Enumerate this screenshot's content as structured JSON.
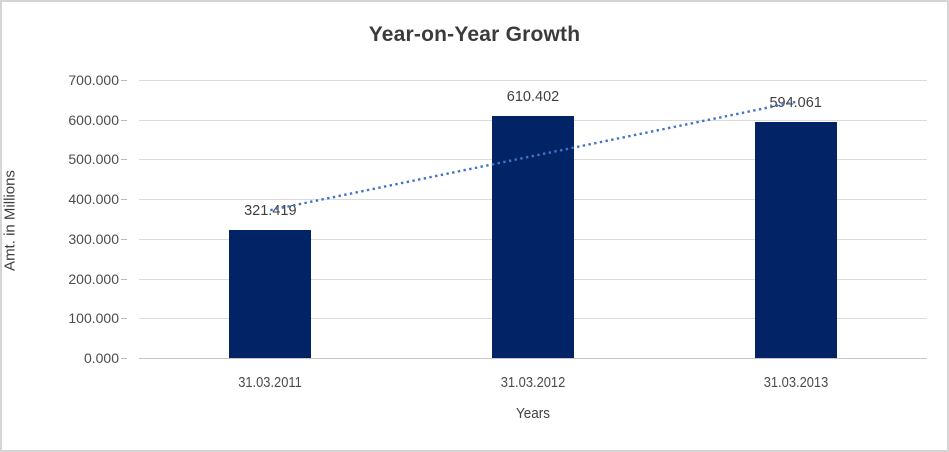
{
  "chart_data": {
    "type": "bar",
    "title": "Year-on-Year Growth",
    "categories": [
      "31.03.2011",
      "31.03.2012",
      "31.03.2013"
    ],
    "values": [
      321.419,
      610.402,
      594.061
    ],
    "data_labels": [
      "321.419",
      "610.402",
      "594.061"
    ],
    "xlabel": "Years",
    "ylabel": "Amt. in Millions",
    "ylim": [
      0,
      700
    ],
    "ytick_step": 100,
    "ytick_labels": [
      "0.000",
      "100.000",
      "200.000",
      "300.000",
      "400.000",
      "500.000",
      "600.000",
      "700.000"
    ],
    "grid": true,
    "legend": false,
    "bar_color": "#022366",
    "trendline": {
      "type": "linear",
      "style": "dotted",
      "color": "#4472C4",
      "start_value": 372.3,
      "end_value": 644.9
    },
    "colors": {
      "gridline": "#DBDBDB",
      "axis_line": "#C6C6C6",
      "title_text": "#3B3B3B",
      "axis_text": "#4C4C4C",
      "background": "#FFFFFF",
      "border": "#D5D5D5"
    }
  }
}
